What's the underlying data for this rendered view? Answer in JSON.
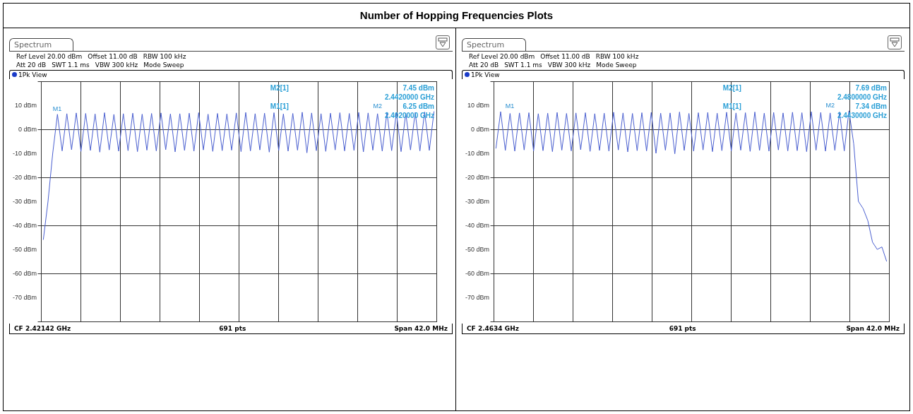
{
  "chart_data": [
    {
      "type": "line",
      "title": "Number of Hopping Frequencies Plots",
      "annotations": [
        "Spectrum",
        "Ref Level 20.00 dBm",
        "Offset 11.00 dB",
        "RBW 100 kHz",
        "Att 20 dB",
        "SWT 1.1 ms",
        "VBW 300 kHz",
        "Mode Sweep",
        "1Pk View",
        "M2[1]",
        "7.45 dBm",
        "2.4420000 GHz",
        "M1[1]",
        "6.25 dBm",
        "2.4020000 GHz",
        "CF 2.42142 GHz",
        "691 pts",
        "Span 42.0 MHz",
        {
          "text": "M1",
          "y": 6.25
        },
        {
          "text": "M2",
          "y": 7.45
        }
      ],
      "categories": [
        null,
        null,
        null,
        null,
        null,
        null,
        null,
        null,
        null,
        null,
        null,
        null,
        null,
        null,
        null,
        null,
        null,
        null,
        null,
        null,
        null,
        null,
        null,
        null,
        null,
        null,
        null,
        null,
        null,
        null,
        null,
        null,
        null,
        null,
        null,
        null,
        null,
        null,
        null,
        null,
        null,
        null,
        null,
        null,
        null,
        null,
        null,
        null,
        null,
        null,
        null,
        null,
        null,
        null,
        null,
        null,
        null,
        null,
        null,
        null,
        null,
        null,
        null,
        null,
        null,
        null,
        null,
        null,
        null,
        null,
        null,
        null,
        null,
        null,
        null,
        null,
        null,
        null,
        null,
        null,
        null,
        null,
        null,
        null
      ],
      "series": [
        {
          "color": "#4a5fd0",
          "values": [
            -46,
            -30,
            -10,
            6.25,
            -9.0,
            6.5,
            -8.5,
            6.8,
            -9.2,
            6.6,
            -8.8,
            6.4,
            -9.5,
            6.9,
            -8.6,
            6.2,
            -9.1,
            6.5,
            -8.9,
            6.7,
            -9.3,
            6.3,
            -8.7,
            6.6,
            -9.0,
            6.8,
            -8.5,
            6.4,
            -9.4,
            6.5,
            -8.8,
            6.7,
            -9.1,
            6.9,
            -8.6,
            6.3,
            -9.2,
            6.6,
            -8.9,
            6.4,
            -8.7,
            6.8,
            -9.3,
            7.0,
            -9.0,
            6.5,
            -8.6,
            6.7,
            -9.5,
            6.9,
            -8.8,
            6.4,
            -9.1,
            6.6,
            -8.7,
            7.1,
            -9.8,
            6.8,
            -8.9,
            6.5,
            -9.2,
            6.7,
            -8.6,
            6.9,
            -9.0,
            6.6,
            -8.8,
            7.0,
            -9.4,
            6.8,
            -8.7,
            6.5,
            -9.1,
            7.1,
            -8.9,
            6.9,
            -9.3,
            6.7,
            -8.6,
            7.0,
            -9.0,
            7.2,
            -8.8,
            7.45
          ]
        }
      ],
      "ylim": [
        -80,
        20
      ],
      "yticks": [
        {
          "value": 20,
          "label": null
        },
        {
          "value": 10,
          "label": "10 dBm"
        },
        {
          "value": 0,
          "label": "0 dBm"
        },
        {
          "value": -10,
          "label": "-10 dBm"
        },
        {
          "value": -20,
          "label": "-20 dBm"
        },
        {
          "value": -30,
          "label": "-30 dBm"
        },
        {
          "value": -40,
          "label": "-40 dBm"
        },
        {
          "value": -50,
          "label": "-50 dBm"
        },
        {
          "value": -60,
          "label": "-60 dBm"
        },
        {
          "value": -70,
          "label": "-70 dBm"
        },
        {
          "value": -80,
          "label": null
        }
      ],
      "grid": true,
      "tick_labels": "y"
    },
    {
      "type": "line",
      "annotations": [
        "Spectrum",
        "Ref Level 20.00 dBm",
        "Offset 11.00 dB",
        "RBW 100 kHz",
        "Att 20 dB",
        "SWT 1.1 ms",
        "VBW 300 kHz",
        "Mode Sweep",
        "1Pk View",
        "M2[1]",
        "7.69 dBm",
        "2.4800000 GHz",
        "M1[1]",
        "7.34 dBm",
        "2.4430000 GHz",
        "CF 2.4634 GHz",
        "691 pts",
        "Span 42.0 MHz",
        {
          "text": "M1",
          "y": 7.34
        },
        {
          "text": "M2",
          "y": 7.69
        }
      ],
      "categories": [
        null,
        null,
        null,
        null,
        null,
        null,
        null,
        null,
        null,
        null,
        null,
        null,
        null,
        null,
        null,
        null,
        null,
        null,
        null,
        null,
        null,
        null,
        null,
        null,
        null,
        null,
        null,
        null,
        null,
        null,
        null,
        null,
        null,
        null,
        null,
        null,
        null,
        null,
        null,
        null,
        null,
        null,
        null,
        null,
        null,
        null,
        null,
        null,
        null,
        null,
        null,
        null,
        null,
        null,
        null,
        null,
        null,
        null,
        null,
        null,
        null,
        null,
        null,
        null,
        null,
        null,
        null,
        null,
        null,
        null,
        null,
        null,
        null,
        null,
        null,
        null,
        null,
        null,
        null,
        null,
        null,
        null,
        null,
        null
      ],
      "series": [
        {
          "color": "#4a5fd0",
          "values": [
            -8,
            7.34,
            -8.8,
            6.6,
            -9.1,
            6.8,
            -8.6,
            6.9,
            -9.0,
            6.5,
            -8.9,
            6.7,
            -9.3,
            7.0,
            -8.7,
            6.6,
            -9.0,
            6.8,
            -8.5,
            6.9,
            -9.2,
            6.5,
            -8.8,
            6.7,
            -9.1,
            7.1,
            -8.6,
            6.8,
            -9.4,
            6.6,
            -8.9,
            6.9,
            -9.0,
            7.0,
            -10,
            6.7,
            -8.7,
            6.8,
            -10.2,
            7.2,
            -8.8,
            6.6,
            -9.1,
            6.9,
            -8.6,
            7.0,
            -9.3,
            6.7,
            -8.9,
            7.1,
            -9.0,
            6.8,
            -8.7,
            6.9,
            -9.2,
            7.2,
            -8.8,
            6.7,
            -9.1,
            7.0,
            -8.6,
            6.8,
            -9.0,
            7.1,
            -8.9,
            6.9,
            -9.3,
            7.3,
            -8.7,
            7.0,
            -9.1,
            6.8,
            -8.8,
            7.2,
            -9.0,
            7.69,
            -6,
            -30,
            -33,
            -38,
            -47,
            -50,
            -49,
            -55
          ]
        }
      ],
      "ylim": [
        -80,
        20
      ],
      "yticks": [
        {
          "value": 20,
          "label": null
        },
        {
          "value": 10,
          "label": "10 dBm"
        },
        {
          "value": 0,
          "label": "0 dBm"
        },
        {
          "value": -10,
          "label": "-10 dBm"
        },
        {
          "value": -20,
          "label": "-20 dBm"
        },
        {
          "value": -30,
          "label": "-30 dBm"
        },
        {
          "value": -40,
          "label": "-40 dBm"
        },
        {
          "value": -50,
          "label": "-50 dBm"
        },
        {
          "value": -60,
          "label": "-60 dBm"
        },
        {
          "value": -70,
          "label": "-70 dBm"
        },
        {
          "value": -80,
          "label": null
        }
      ],
      "grid": true,
      "tick_labels": "y"
    }
  ]
}
